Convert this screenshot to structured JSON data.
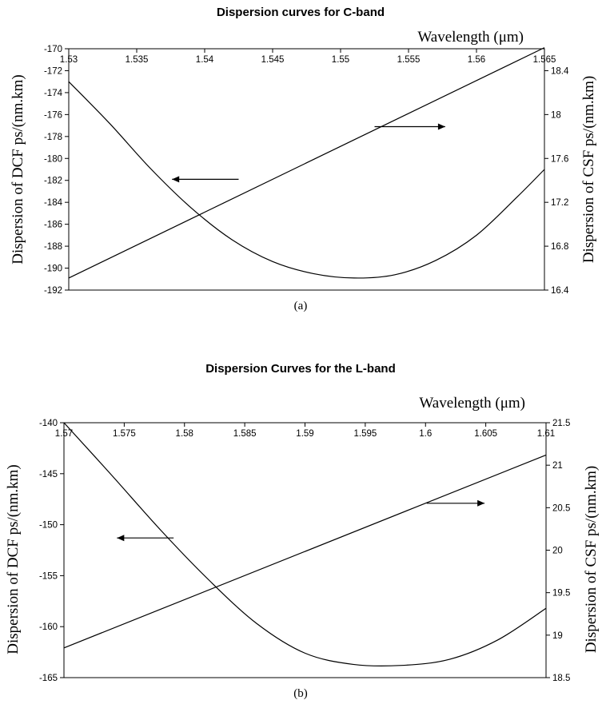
{
  "chart_data": [
    {
      "type": "line",
      "title": "Dispersion curves for C-band",
      "caption": "(a)",
      "xlabel": "Wavelength (μm)",
      "ylabel_left": "Dispersion of DCF ps/(nm.km)",
      "ylabel_right": "Dispersion of CSF ps/(nm.km)",
      "xlim": [
        1.53,
        1.565
      ],
      "x_ticks": [
        "1.53",
        "1.535",
        "1.54",
        "1.545",
        "1.55",
        "1.555",
        "1.56",
        "1.565"
      ],
      "ylim_left": [
        -192,
        -170
      ],
      "y_ticks_left": [
        "-170",
        "-172",
        "-174",
        "-176",
        "-178",
        "-180",
        "-182",
        "-184",
        "-186",
        "-188",
        "-190",
        "-192"
      ],
      "ylim_right": [
        16.4,
        18.6
      ],
      "y_ticks_right": [
        "18.4",
        "18",
        "17.6",
        "17.2",
        "16.8",
        "16.4"
      ],
      "series": [
        {
          "axis": "left",
          "x": [
            1.53,
            1.533,
            1.536,
            1.539,
            1.542,
            1.545,
            1.548,
            1.551,
            1.554,
            1.557,
            1.56,
            1.563,
            1.565
          ],
          "y": [
            -173,
            -176.8,
            -180.9,
            -184.5,
            -187.4,
            -189.4,
            -190.5,
            -190.9,
            -190.6,
            -189.3,
            -187,
            -183.5,
            -181
          ]
        },
        {
          "axis": "right",
          "x": [
            1.53,
            1.565
          ],
          "y": [
            16.51,
            18.61
          ]
        }
      ],
      "arrows": [
        {
          "direction": "left",
          "x": [
            1.5425,
            1.5376
          ],
          "y_left": -181.9
        },
        {
          "direction": "right",
          "x": [
            1.5525,
            1.5577
          ],
          "y_left": -177.1
        }
      ]
    },
    {
      "type": "line",
      "title": "Dispersion Curves for the L-band",
      "caption": "(b)",
      "xlabel": "Wavelength (μm)",
      "ylabel_left": "Dispersion of DCF ps/(nm.km)",
      "ylabel_right": "Dispersion of CSF ps/(nm.km)",
      "xlim": [
        1.57,
        1.61
      ],
      "x_ticks": [
        "1.57",
        "1.575",
        "1.58",
        "1.585",
        "1.59",
        "1.595",
        "1.6",
        "1.605",
        "1.61"
      ],
      "ylim_left": [
        -165,
        -140
      ],
      "y_ticks_left": [
        "-140",
        "-145",
        "-150",
        "-155",
        "-160",
        "-165"
      ],
      "ylim_right": [
        18.5,
        21.5
      ],
      "y_ticks_right": [
        "21.5",
        "21",
        "20.5",
        "20",
        "19.5",
        "19",
        "18.5"
      ],
      "series": [
        {
          "axis": "left",
          "x": [
            1.57,
            1.574,
            1.578,
            1.582,
            1.586,
            1.59,
            1.594,
            1.598,
            1.602,
            1.606,
            1.61
          ],
          "y": [
            -140,
            -145.2,
            -150.5,
            -155.4,
            -159.7,
            -162.6,
            -163.7,
            -163.8,
            -163.2,
            -161.3,
            -158.2
          ]
        },
        {
          "axis": "right",
          "x": [
            1.57,
            1.61
          ],
          "y": [
            18.85,
            21.12
          ]
        }
      ],
      "arrows": [
        {
          "direction": "left",
          "x": [
            1.5791,
            1.5744
          ],
          "y_left": -151.3
        },
        {
          "direction": "right",
          "x": [
            1.6001,
            1.6049
          ],
          "y_left": -147.9
        }
      ]
    }
  ]
}
